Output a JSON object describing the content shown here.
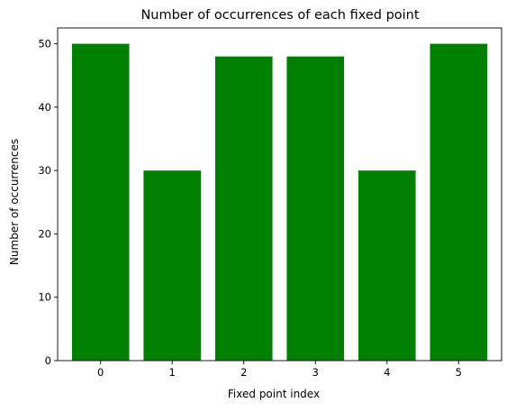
{
  "chart_data": {
    "type": "bar",
    "title": "Number of occurrences of each fixed point",
    "xlabel": "Fixed point index",
    "ylabel": "Number of occurrences",
    "categories": [
      "0",
      "1",
      "2",
      "3",
      "4",
      "5"
    ],
    "values": [
      50,
      30,
      48,
      48,
      30,
      50
    ],
    "ylim": [
      0,
      52.5
    ],
    "yticks": [
      0,
      10,
      20,
      30,
      40,
      50
    ],
    "bar_color": "#008000",
    "grid": false,
    "legend": "none"
  }
}
